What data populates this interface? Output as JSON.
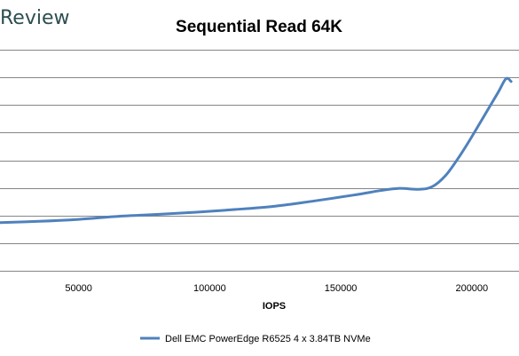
{
  "brand": {
    "text": "Review"
  },
  "chart_data": {
    "type": "line",
    "title": "Sequential Read 64K",
    "xlabel": "IOPS",
    "ylabel": "",
    "xlim": [
      20000,
      218000
    ],
    "ylim": [
      0,
      8
    ],
    "x_ticks": [
      50000,
      100000,
      150000,
      200000
    ],
    "x_tick_labels": [
      "50000",
      "100000",
      "150000",
      "200000"
    ],
    "grid": true,
    "legend": "bottom",
    "series": [
      {
        "name": "Dell EMC PowerEdge R6525 4 x 3.84TB NVMe",
        "color": "#4f81bd",
        "x": [
          20000,
          35000,
          50000,
          65000,
          80000,
          95000,
          110000,
          125000,
          140000,
          155000,
          165000,
          172000,
          180000,
          185000,
          190000,
          195000,
          200000,
          205000,
          210000,
          213000,
          215000
        ],
        "y": [
          1.74,
          1.79,
          1.86,
          1.97,
          2.04,
          2.12,
          2.22,
          2.34,
          2.53,
          2.74,
          2.9,
          2.98,
          2.95,
          3.05,
          3.45,
          4.1,
          4.85,
          5.65,
          6.45,
          6.95,
          6.85
        ]
      }
    ]
  }
}
